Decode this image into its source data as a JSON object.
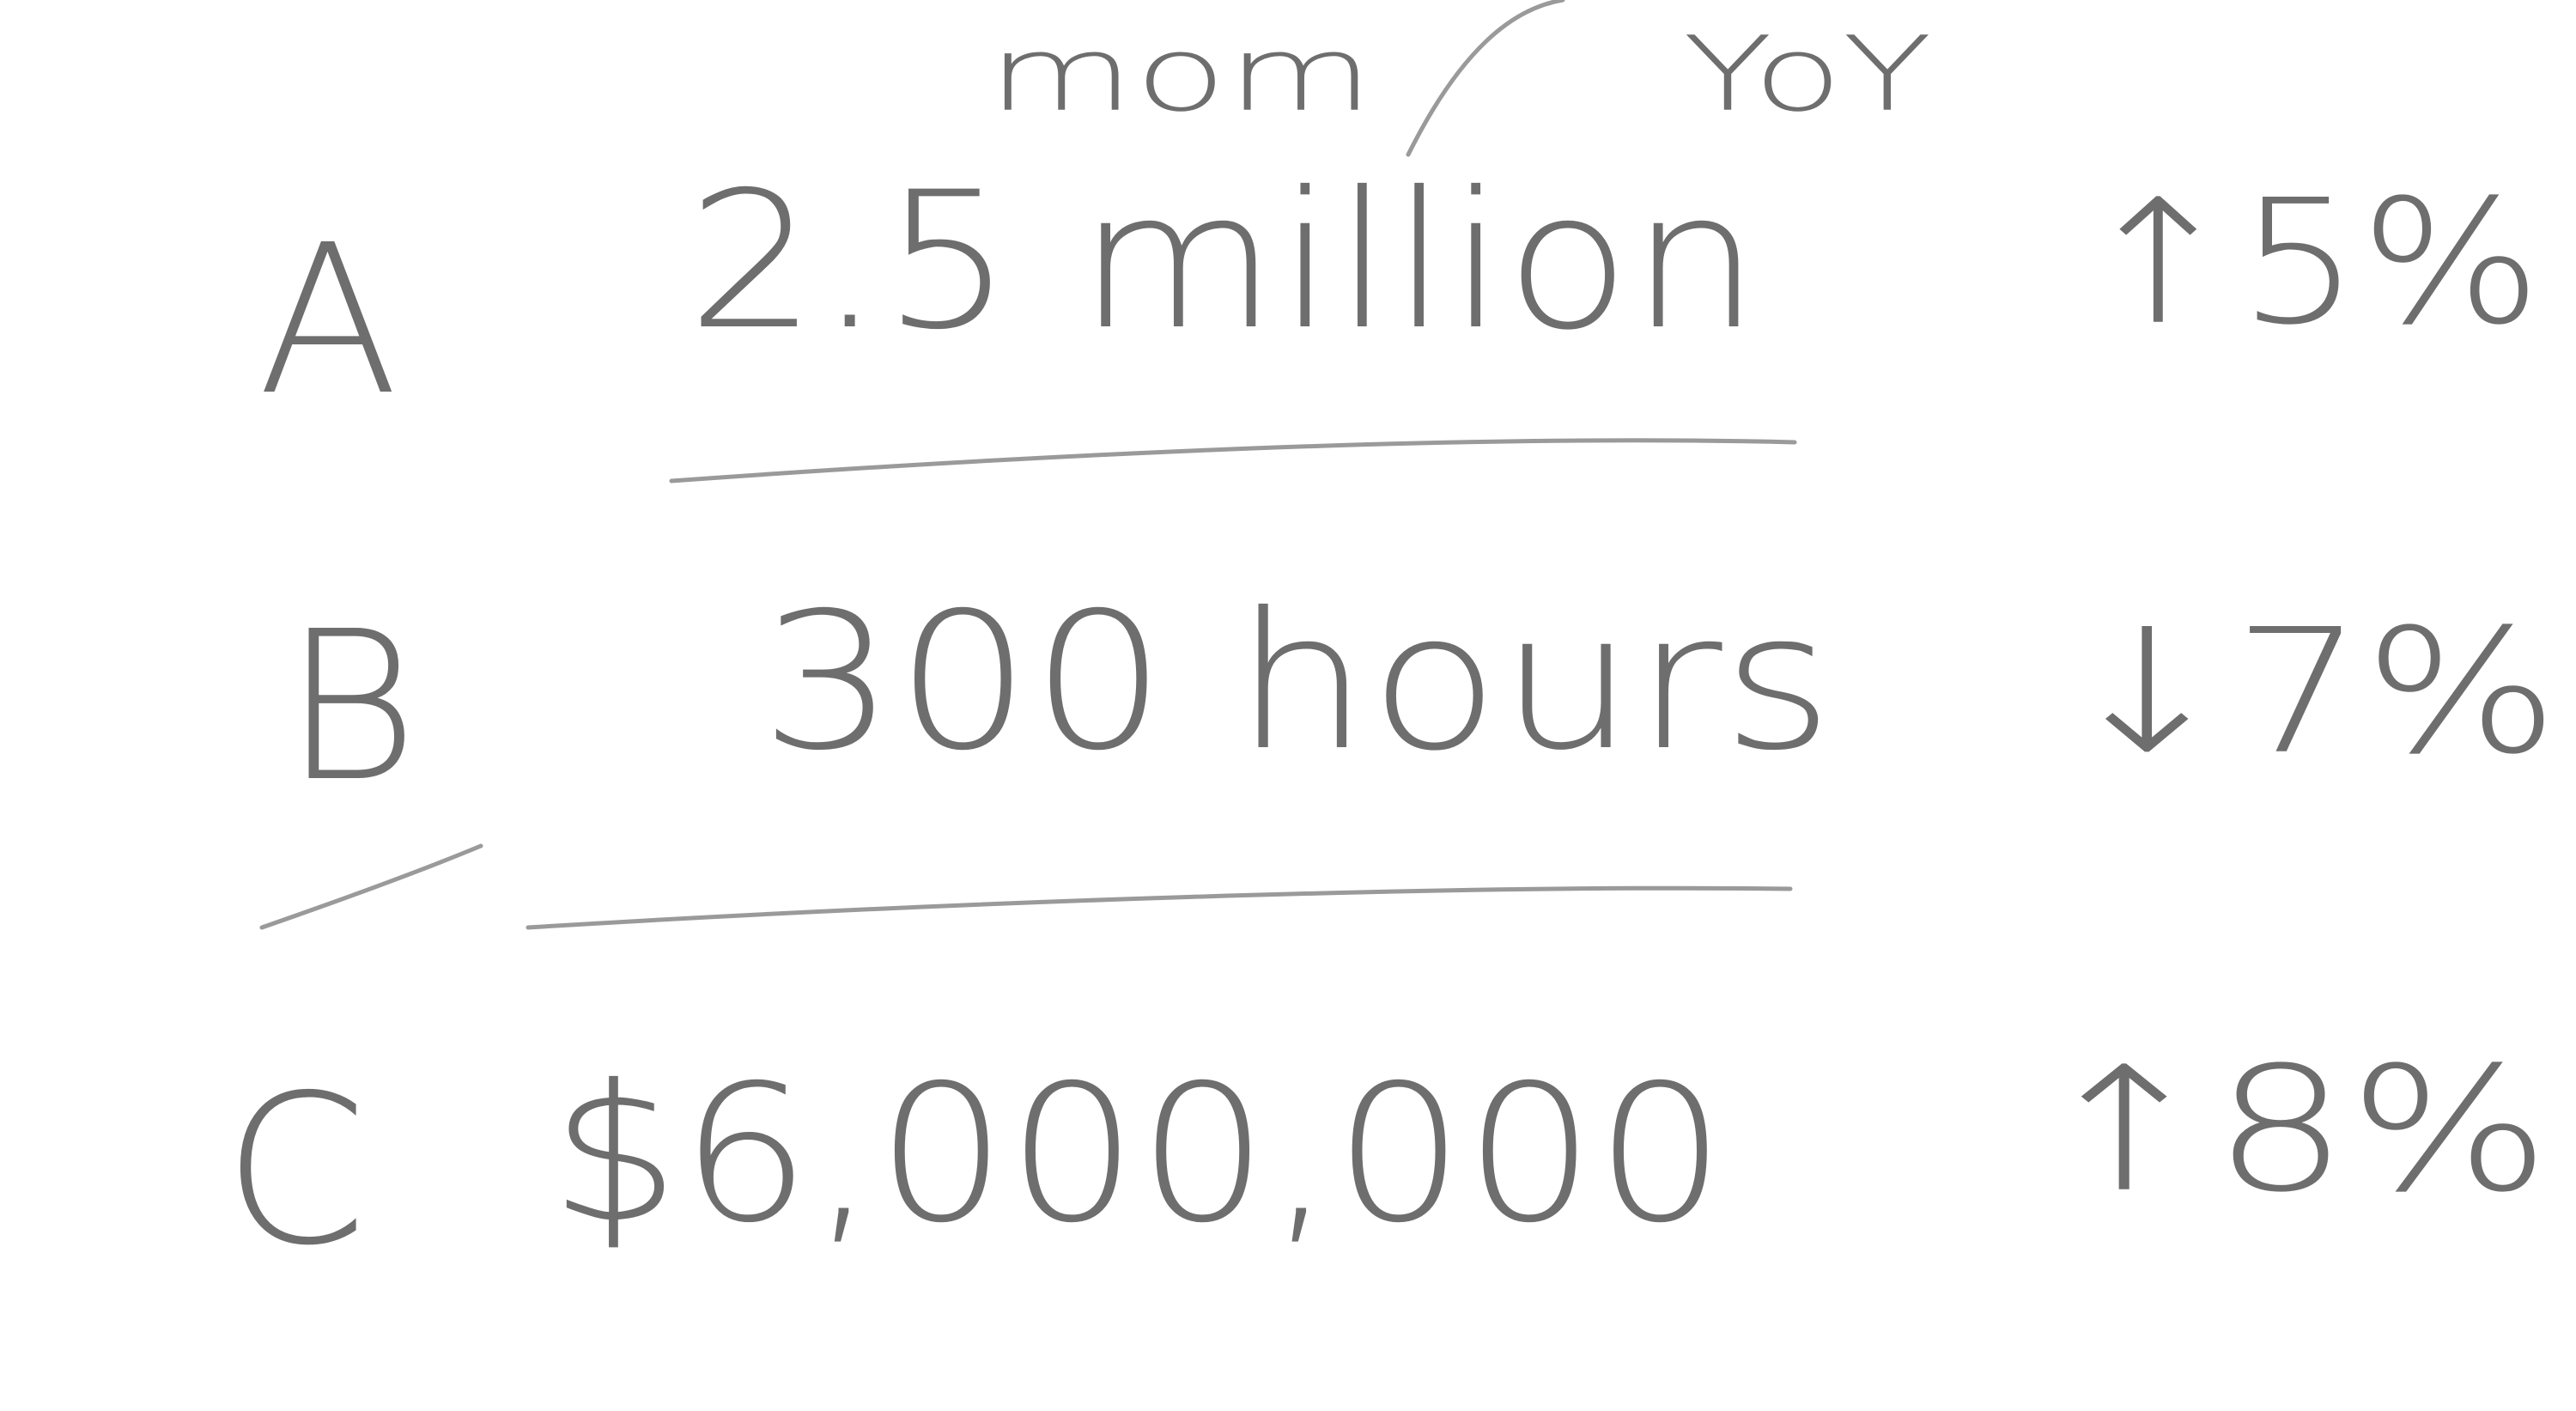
{
  "annotations": {
    "mom": "mom",
    "yoy": "YoY"
  },
  "rows": [
    {
      "label": "A",
      "value": "2.5 million",
      "change": "↑5%"
    },
    {
      "label": "B",
      "value": "300 hours",
      "change": "↓7%"
    },
    {
      "label": "C",
      "value": "$6,000,000",
      "change": "↑8%"
    }
  ]
}
